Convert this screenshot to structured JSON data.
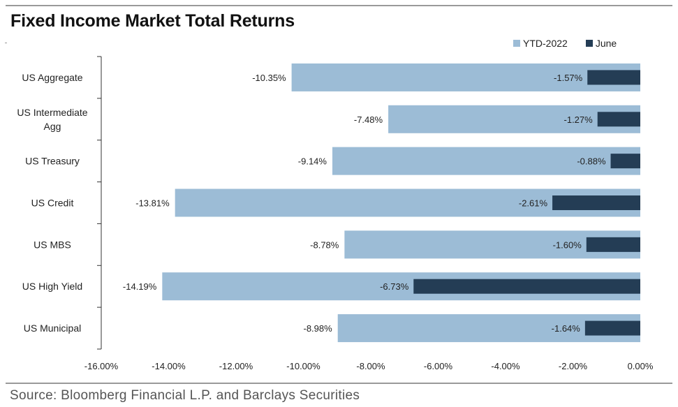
{
  "title": "Fixed Income Market Total Returns",
  "source": "Source: Bloomberg Financial L.P. and Barclays Securities",
  "colors": {
    "ytd": "#9cbcd6",
    "june": "#243d55",
    "axis": "#333333"
  },
  "chart_data": {
    "type": "bar",
    "orientation": "horizontal",
    "categories": [
      "US Aggregate",
      "US Intermediate\nAgg",
      "US Treasury",
      "US Credit",
      "US MBS",
      "US High Yield",
      "US Municipal"
    ],
    "series": [
      {
        "name": "YTD-2022",
        "values": [
          -10.35,
          -7.48,
          -9.14,
          -13.81,
          -8.78,
          -14.19,
          -8.98
        ],
        "labels": [
          "-10.35%",
          "-7.48%",
          "-9.14%",
          "-13.81%",
          "-8.78%",
          "-14.19%",
          "-8.98%"
        ]
      },
      {
        "name": "June",
        "values": [
          -1.57,
          -1.27,
          -0.88,
          -2.61,
          -1.6,
          -6.73,
          -1.64
        ],
        "labels": [
          "-1.57%",
          "-1.27%",
          "-0.88%",
          "-2.61%",
          "-1.60%",
          "-6.73%",
          "-1.64%"
        ]
      }
    ],
    "xlim": [
      -16,
      0
    ],
    "xticks": [
      -16,
      -14,
      -12,
      -10,
      -8,
      -6,
      -4,
      -2,
      0
    ],
    "xtick_labels": [
      "-16.00%",
      "-14.00%",
      "-12.00%",
      "-10.00%",
      "-8.00%",
      "-6.00%",
      "-4.00%",
      "-2.00%",
      "0.00%"
    ],
    "legend_position": "top-right",
    "grid": false
  }
}
